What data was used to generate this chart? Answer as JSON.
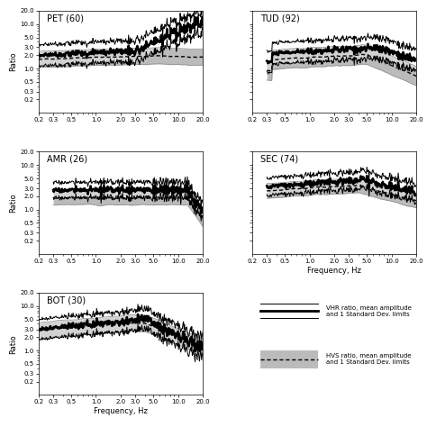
{
  "freq_min": 0.2,
  "freq_max": 20.0,
  "y_min": 0.1,
  "y_max": 20.0,
  "yticks": [
    0.2,
    0.3,
    0.5,
    1.0,
    2.0,
    3.0,
    5.0,
    10.0,
    20.0
  ],
  "xticks": [
    0.2,
    0.3,
    0.5,
    1.0,
    2.0,
    3.0,
    5.0,
    10.0,
    20.0
  ],
  "xlabel": "Frequency, Hz",
  "ylabel": "Ratio",
  "shade_color": "#bbbbbb",
  "legend_vhr_text": "VHR ratio, mean amplitude\nand 1 Standard Dev. limits",
  "legend_hvs_text": "HVS ratio, mean amplitude\nand 1 Standard Dev. limits",
  "panels": [
    {
      "name": "PET (60)",
      "row": 0,
      "col": 0,
      "vhr_base": 2.0,
      "vhr_spread": 0.55,
      "vhr_rise_start": 3.0,
      "vhr_rise_factor": 2.5,
      "hvs_base": 1.6,
      "hvs_spread": 0.42,
      "freq_cutoff": 0.2,
      "noise_vhr": 0.18,
      "noise_hvs": 0.06
    },
    {
      "name": "TUD (92)",
      "row": 0,
      "col": 1,
      "vhr_base": 2.0,
      "vhr_spread": 0.55,
      "vhr_rise_start": 3.0,
      "vhr_rise_factor": 2.0,
      "hvs_base": 1.5,
      "hvs_spread": 0.5,
      "freq_cutoff": 0.3,
      "noise_vhr": 0.14,
      "noise_hvs": 0.07
    },
    {
      "name": "AMR (26)",
      "row": 1,
      "col": 0,
      "vhr_base": 2.5,
      "vhr_spread": 0.4,
      "vhr_rise_start": 20.0,
      "vhr_rise_factor": 1.0,
      "hvs_base": 1.8,
      "hvs_spread": 0.35,
      "freq_cutoff": 0.3,
      "noise_vhr": 0.16,
      "noise_hvs": 0.06
    },
    {
      "name": "SEC (74)",
      "row": 1,
      "col": 1,
      "vhr_base": 3.0,
      "vhr_spread": 0.45,
      "vhr_rise_start": 20.0,
      "vhr_rise_factor": 1.0,
      "hvs_base": 2.5,
      "hvs_spread": 0.38,
      "freq_cutoff": 0.3,
      "noise_vhr": 0.16,
      "noise_hvs": 0.07
    },
    {
      "name": "BOT (30)",
      "row": 2,
      "col": 0,
      "vhr_base": 3.0,
      "vhr_spread": 0.52,
      "vhr_rise_start": 20.0,
      "vhr_rise_factor": 1.0,
      "hvs_base": 2.8,
      "hvs_spread": 0.42,
      "freq_cutoff": 0.2,
      "noise_vhr": 0.18,
      "noise_hvs": 0.07
    }
  ]
}
